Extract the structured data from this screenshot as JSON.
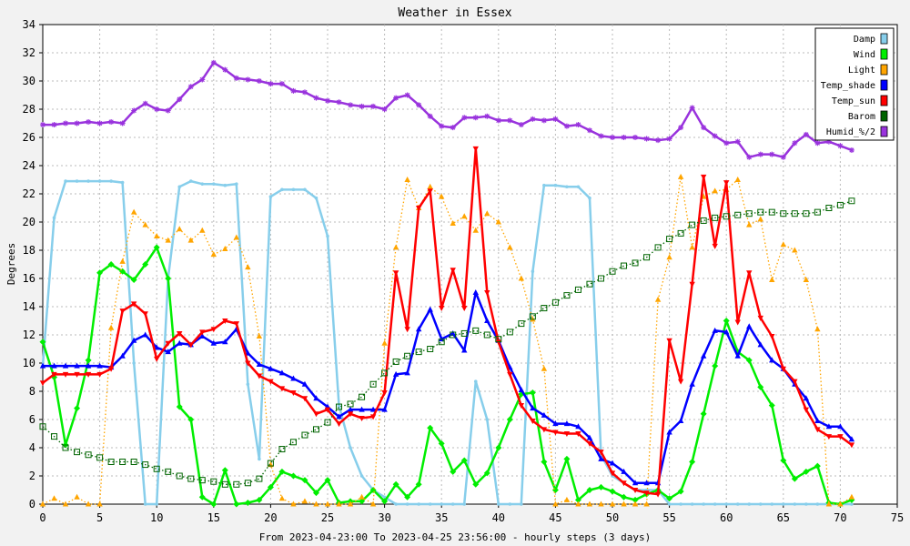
{
  "chart_data": {
    "type": "line",
    "title": "Weather in Essex",
    "xlabel": "From 2023-04-23:00 To 2023-04-25 23:56:00 - hourly steps (3 days)",
    "ylabel": "Degrees",
    "xlim": [
      0,
      75
    ],
    "ylim": [
      0,
      34
    ],
    "xticks": [
      0,
      5,
      10,
      15,
      20,
      25,
      30,
      35,
      40,
      45,
      50,
      55,
      60,
      65,
      70,
      75
    ],
    "yticks": [
      0,
      2,
      4,
      6,
      8,
      10,
      12,
      14,
      16,
      18,
      20,
      22,
      24,
      26,
      28,
      30,
      32,
      34
    ],
    "grid": true,
    "legend_position": "top-right",
    "x": [
      0,
      1,
      2,
      3,
      4,
      5,
      6,
      7,
      8,
      9,
      10,
      11,
      12,
      13,
      14,
      15,
      16,
      17,
      18,
      19,
      20,
      21,
      22,
      23,
      24,
      25,
      26,
      27,
      28,
      29,
      30,
      31,
      32,
      33,
      34,
      35,
      36,
      37,
      38,
      39,
      40,
      41,
      42,
      43,
      44,
      45,
      46,
      47,
      48,
      49,
      50,
      51,
      52,
      53,
      54,
      55,
      56,
      57,
      58,
      59,
      60,
      61,
      62,
      63,
      64,
      65,
      66,
      67,
      68,
      69,
      70,
      71
    ],
    "series": [
      {
        "name": "Damp",
        "color": "#87ceeb",
        "style": "solid",
        "marker": "dot",
        "values": [
          9.8,
          20.3,
          22.9,
          22.9,
          22.9,
          22.9,
          22.9,
          22.8,
          10.0,
          0.0,
          0.0,
          16.0,
          22.5,
          22.9,
          22.7,
          22.7,
          22.6,
          22.7,
          8.5,
          3.2,
          21.8,
          22.3,
          22.3,
          22.3,
          21.7,
          19.0,
          7.0,
          4.0,
          2.0,
          1.0,
          0.5,
          0.0,
          0.0,
          0.0,
          0.0,
          0.0,
          0.0,
          0.0,
          8.7,
          6.0,
          0.0,
          0.0,
          0.0,
          16.5,
          22.6,
          22.6,
          22.5,
          22.5,
          21.7,
          3.5,
          2.0,
          1.5,
          1.0,
          1.0,
          1.0,
          0.0,
          0.0,
          0.0,
          0.0,
          0.0,
          0.0,
          0.0,
          0.0,
          0.0,
          0.0,
          0.0,
          0.0,
          0.0,
          0.0,
          0.0,
          0.0,
          0.0
        ]
      },
      {
        "name": "Wind",
        "color": "#00ee00",
        "style": "solid",
        "marker": "diamond",
        "values": [
          11.5,
          9.0,
          4.2,
          6.8,
          10.2,
          16.4,
          17.0,
          16.5,
          15.9,
          17.0,
          18.2,
          16.0,
          6.9,
          6.0,
          0.5,
          0.0,
          2.4,
          0.0,
          0.1,
          0.3,
          1.2,
          2.3,
          2.0,
          1.7,
          0.8,
          1.7,
          0.1,
          0.2,
          0.2,
          1.0,
          0.2,
          1.4,
          0.5,
          1.4,
          5.4,
          4.3,
          2.3,
          3.1,
          1.4,
          2.2,
          4.0,
          6.0,
          7.8,
          7.9,
          3.0,
          1.0,
          3.2,
          0.3,
          1.0,
          1.2,
          0.9,
          0.5,
          0.3,
          0.7,
          1.0,
          0.4,
          0.9,
          3.0,
          6.4,
          9.8,
          13.0,
          10.8,
          10.2,
          8.3,
          7.0,
          3.1,
          1.8,
          2.3,
          2.7,
          0.1,
          0.0,
          0.3
        ]
      },
      {
        "name": "Light",
        "color": "#ffa500",
        "style": "dotted",
        "marker": "triangle",
        "values": [
          0.0,
          0.4,
          0.0,
          0.5,
          0.0,
          0.0,
          12.5,
          17.2,
          20.7,
          19.8,
          19.0,
          18.7,
          19.5,
          18.7,
          19.4,
          17.7,
          18.1,
          18.9,
          16.8,
          11.9,
          2.8,
          0.4,
          0.0,
          0.2,
          0.0,
          0.0,
          0.0,
          0.0,
          0.5,
          0.0,
          11.4,
          18.2,
          23.0,
          21.0,
          22.5,
          21.8,
          19.9,
          20.4,
          19.4,
          20.6,
          20.0,
          18.2,
          16.0,
          13.1,
          9.6,
          0.0,
          0.3,
          0.0,
          0.0,
          0.0,
          0.0,
          0.0,
          0.0,
          0.0,
          14.5,
          17.5,
          23.2,
          18.2,
          21.8,
          22.2,
          22.3,
          23.0,
          19.8,
          20.2,
          15.9,
          18.4,
          18.0,
          15.9,
          12.4,
          0.0,
          0.0,
          0.5
        ]
      },
      {
        "name": "Temp_shade",
        "color": "#0000ff",
        "style": "solid",
        "marker": "triangle",
        "values": [
          9.8,
          9.8,
          9.8,
          9.8,
          9.8,
          9.8,
          9.7,
          10.5,
          11.6,
          12.0,
          11.1,
          10.8,
          11.4,
          11.3,
          11.9,
          11.4,
          11.5,
          12.4,
          10.7,
          9.9,
          9.6,
          9.3,
          8.9,
          8.5,
          7.5,
          6.9,
          6.2,
          6.7,
          6.7,
          6.7,
          6.7,
          9.2,
          9.3,
          12.4,
          13.8,
          11.7,
          12.1,
          10.9,
          15.0,
          13.0,
          11.6,
          9.7,
          8.1,
          6.8,
          6.3,
          5.7,
          5.7,
          5.5,
          4.7,
          3.2,
          2.9,
          2.3,
          1.5,
          1.5,
          1.5,
          5.1,
          5.9,
          8.5,
          10.5,
          12.3,
          12.2,
          10.5,
          12.6,
          11.3,
          10.2,
          9.6,
          8.5,
          7.5,
          5.9,
          5.5,
          5.5,
          4.6
        ]
      },
      {
        "name": "Temp_sun",
        "color": "#ff0000",
        "style": "solid",
        "marker": "triangle-down",
        "values": [
          8.6,
          9.2,
          9.2,
          9.2,
          9.2,
          9.2,
          9.6,
          13.7,
          14.2,
          13.5,
          10.3,
          11.4,
          12.1,
          11.3,
          12.2,
          12.4,
          13.0,
          12.8,
          10.0,
          9.1,
          8.7,
          8.2,
          7.9,
          7.5,
          6.4,
          6.7,
          5.7,
          6.4,
          6.1,
          6.2,
          7.9,
          16.4,
          12.4,
          21.0,
          22.2,
          13.9,
          16.6,
          13.9,
          25.2,
          15.0,
          11.5,
          9.2,
          7.0,
          5.9,
          5.3,
          5.1,
          5.0,
          5.0,
          4.3,
          3.7,
          2.2,
          1.5,
          1.0,
          0.8,
          0.7,
          11.6,
          8.7,
          15.6,
          23.2,
          18.3,
          22.8,
          12.9,
          16.4,
          13.2,
          11.9,
          9.6,
          8.7,
          6.7,
          5.3,
          4.8,
          4.8,
          4.2
        ]
      },
      {
        "name": "Barom",
        "color": "#006400",
        "style": "dotted",
        "marker": "square",
        "values": [
          5.5,
          4.8,
          4.0,
          3.7,
          3.5,
          3.3,
          3.0,
          3.0,
          3.0,
          2.8,
          2.5,
          2.3,
          2.0,
          1.8,
          1.7,
          1.6,
          1.4,
          1.4,
          1.5,
          1.8,
          2.9,
          3.9,
          4.4,
          4.9,
          5.3,
          5.8,
          6.9,
          7.1,
          7.6,
          8.5,
          9.3,
          10.1,
          10.5,
          10.8,
          11.0,
          11.5,
          12.0,
          12.1,
          12.3,
          12.0,
          11.7,
          12.2,
          12.8,
          13.3,
          13.9,
          14.3,
          14.8,
          15.2,
          15.6,
          16.0,
          16.5,
          16.9,
          17.1,
          17.5,
          18.2,
          18.8,
          19.2,
          19.8,
          20.1,
          20.3,
          20.4,
          20.5,
          20.6,
          20.7,
          20.7,
          20.6,
          20.6,
          20.6,
          20.7,
          21.0,
          21.2,
          21.5
        ]
      },
      {
        "name": "Humid_%/2",
        "color": "#9933dd",
        "style": "solid",
        "marker": "star",
        "values": [
          26.9,
          26.9,
          27.0,
          27.0,
          27.1,
          27.0,
          27.1,
          27.0,
          27.9,
          28.4,
          28.0,
          27.9,
          28.7,
          29.6,
          30.1,
          31.3,
          30.8,
          30.2,
          30.1,
          30.0,
          29.8,
          29.8,
          29.3,
          29.2,
          28.8,
          28.6,
          28.5,
          28.3,
          28.2,
          28.2,
          28.0,
          28.8,
          29.0,
          28.3,
          27.5,
          26.8,
          26.7,
          27.4,
          27.4,
          27.5,
          27.2,
          27.2,
          26.9,
          27.3,
          27.2,
          27.3,
          26.8,
          26.9,
          26.5,
          26.1,
          26.0,
          26.0,
          26.0,
          25.9,
          25.8,
          25.9,
          26.7,
          28.1,
          26.7,
          26.1,
          25.6,
          25.7,
          24.6,
          24.8,
          24.8,
          24.6,
          25.6,
          26.2,
          25.6,
          25.7,
          25.4,
          25.1
        ]
      }
    ]
  }
}
